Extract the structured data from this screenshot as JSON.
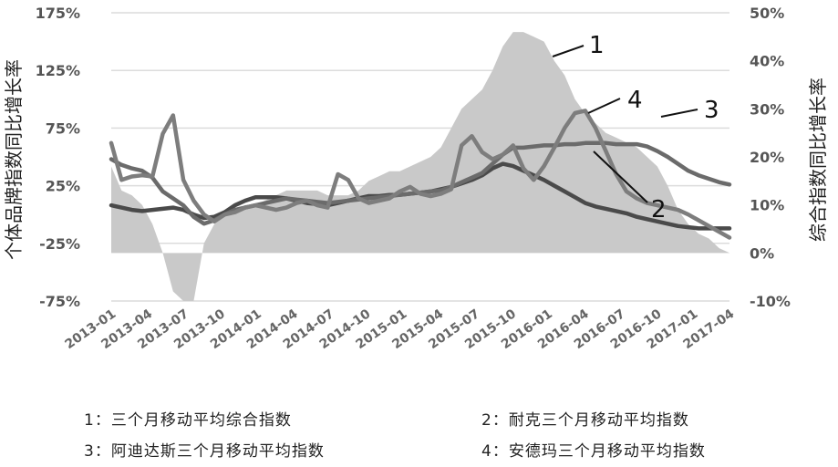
{
  "chart_data": {
    "type": "line",
    "ylabel_left": "个体品牌指数同比增长率",
    "ylabel_right": "综合指数同比增长率",
    "y_left": {
      "min": -75,
      "max": 175,
      "ticks": [
        "175%",
        "125%",
        "75%",
        "25%",
        "-25%",
        "-75%"
      ]
    },
    "y_right": {
      "min": -10,
      "max": 50,
      "ticks": [
        "50%",
        "40%",
        "30%",
        "20%",
        "10%",
        "0%",
        "-10%"
      ]
    },
    "x_labels": [
      "2013-01",
      "2013-04",
      "2013-07",
      "2013-10",
      "2014-01",
      "2014-04",
      "2014-07",
      "2014-10",
      "2015-01",
      "2015-04",
      "2015-07",
      "2015-10",
      "2016-01",
      "2016-04",
      "2016-07",
      "2016-10",
      "2017-01",
      "2017-04"
    ],
    "grid": true,
    "series": [
      {
        "id": "1",
        "axis": "right",
        "kind": "area",
        "color": "#c9c9c9",
        "values": [
          18,
          13,
          12,
          10,
          6,
          0,
          -8,
          -10,
          -10,
          2,
          6,
          8,
          9,
          10,
          10,
          11,
          12,
          13,
          13,
          13,
          13,
          12,
          12,
          12,
          13,
          15,
          16,
          17,
          17,
          18,
          19,
          20,
          22,
          26,
          30,
          32,
          34,
          38,
          43,
          46,
          46,
          45,
          44,
          40,
          37,
          32,
          29,
          27,
          25,
          24,
          23,
          22,
          20,
          18,
          14,
          9,
          6,
          4,
          3,
          1,
          0
        ]
      },
      {
        "id": "2",
        "axis": "left",
        "kind": "line",
        "color": "#4a4a4a",
        "values": [
          8,
          6,
          4,
          3,
          4,
          5,
          6,
          4,
          0,
          -3,
          -2,
          2,
          8,
          12,
          15,
          15,
          15,
          14,
          12,
          10,
          9,
          8,
          10,
          12,
          14,
          16,
          16,
          17,
          17,
          18,
          19,
          20,
          22,
          24,
          27,
          30,
          34,
          40,
          44,
          42,
          38,
          34,
          30,
          25,
          20,
          15,
          10,
          7,
          5,
          3,
          1,
          -2,
          -4,
          -6,
          -8,
          -10,
          -11,
          -12,
          -12,
          -12,
          -12
        ]
      },
      {
        "id": "3",
        "axis": "left",
        "kind": "line",
        "color": "#6b6b6b",
        "values": [
          48,
          43,
          40,
          38,
          32,
          20,
          14,
          8,
          -2,
          -8,
          -5,
          0,
          4,
          6,
          8,
          10,
          12,
          14,
          13,
          12,
          11,
          10,
          11,
          12,
          13,
          14,
          15,
          16,
          17,
          18,
          19,
          20,
          21,
          24,
          28,
          32,
          36,
          44,
          52,
          58,
          58,
          59,
          60,
          60,
          61,
          61,
          62,
          62,
          62,
          61,
          61,
          61,
          59,
          55,
          50,
          44,
          38,
          34,
          31,
          28,
          26
        ]
      },
      {
        "id": "4",
        "axis": "left",
        "kind": "line",
        "color": "#7d7d7d",
        "values": [
          62,
          30,
          33,
          34,
          33,
          70,
          86,
          30,
          12,
          0,
          -6,
          0,
          2,
          6,
          8,
          6,
          4,
          6,
          10,
          12,
          8,
          6,
          35,
          30,
          14,
          10,
          12,
          14,
          20,
          24,
          18,
          16,
          18,
          22,
          60,
          68,
          54,
          48,
          52,
          60,
          40,
          30,
          42,
          58,
          75,
          88,
          90,
          75,
          55,
          35,
          20,
          14,
          10,
          8,
          6,
          4,
          0,
          -5,
          -10,
          -15,
          -20
        ]
      }
    ],
    "annotations": [
      "1",
      "2",
      "3",
      "4"
    ]
  },
  "legend": [
    "1：三个月移动平均综合指数",
    "2：耐克三个月移动平均指数",
    "3：阿迪达斯三个月移动平均指数",
    "4：安德玛三个月移动平均指数"
  ]
}
